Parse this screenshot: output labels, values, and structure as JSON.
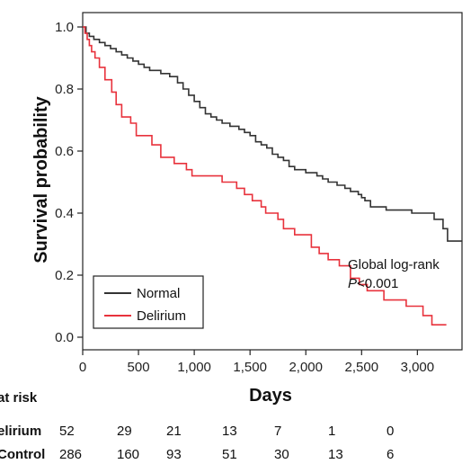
{
  "chart_data": {
    "type": "line",
    "xlabel": "Days",
    "ylabel": "Survival probability",
    "xlim": [
      0,
      3400
    ],
    "ylim": [
      0,
      1.0
    ],
    "x_ticks": [
      0,
      500,
      1000,
      1500,
      2000,
      2500,
      3000
    ],
    "x_tick_labels": [
      "0",
      "500",
      "1,000",
      "1,500",
      "2,000",
      "2,500",
      "3,000"
    ],
    "y_ticks": [
      0.0,
      0.2,
      0.4,
      0.6,
      0.8,
      1.0
    ],
    "y_tick_labels": [
      "0.0",
      "0.2",
      "0.4",
      "0.6",
      "0.8",
      "1.0"
    ],
    "legend_position": "bottom-left",
    "series": [
      {
        "name": "Normal",
        "color": "#333333",
        "step": true,
        "points": [
          [
            0,
            1.0
          ],
          [
            30,
            0.98
          ],
          [
            60,
            0.97
          ],
          [
            100,
            0.96
          ],
          [
            150,
            0.95
          ],
          [
            200,
            0.94
          ],
          [
            250,
            0.93
          ],
          [
            300,
            0.92
          ],
          [
            350,
            0.91
          ],
          [
            400,
            0.9
          ],
          [
            450,
            0.89
          ],
          [
            500,
            0.88
          ],
          [
            550,
            0.87
          ],
          [
            600,
            0.86
          ],
          [
            700,
            0.85
          ],
          [
            780,
            0.84
          ],
          [
            850,
            0.82
          ],
          [
            900,
            0.8
          ],
          [
            950,
            0.78
          ],
          [
            1000,
            0.76
          ],
          [
            1050,
            0.74
          ],
          [
            1100,
            0.72
          ],
          [
            1150,
            0.71
          ],
          [
            1200,
            0.7
          ],
          [
            1250,
            0.69
          ],
          [
            1320,
            0.68
          ],
          [
            1400,
            0.67
          ],
          [
            1450,
            0.66
          ],
          [
            1500,
            0.65
          ],
          [
            1550,
            0.63
          ],
          [
            1600,
            0.62
          ],
          [
            1650,
            0.61
          ],
          [
            1700,
            0.59
          ],
          [
            1750,
            0.58
          ],
          [
            1800,
            0.57
          ],
          [
            1850,
            0.55
          ],
          [
            1900,
            0.54
          ],
          [
            2000,
            0.53
          ],
          [
            2100,
            0.52
          ],
          [
            2150,
            0.51
          ],
          [
            2200,
            0.5
          ],
          [
            2280,
            0.49
          ],
          [
            2350,
            0.48
          ],
          [
            2400,
            0.47
          ],
          [
            2470,
            0.46
          ],
          [
            2500,
            0.45
          ],
          [
            2530,
            0.44
          ],
          [
            2580,
            0.42
          ],
          [
            2720,
            0.41
          ],
          [
            2950,
            0.4
          ],
          [
            3150,
            0.38
          ],
          [
            3230,
            0.35
          ],
          [
            3270,
            0.31
          ],
          [
            3400,
            0.31
          ]
        ]
      },
      {
        "name": "Delirium",
        "color": "#e8323c",
        "step": true,
        "points": [
          [
            0,
            1.0
          ],
          [
            20,
            0.98
          ],
          [
            40,
            0.96
          ],
          [
            60,
            0.94
          ],
          [
            80,
            0.92
          ],
          [
            110,
            0.9
          ],
          [
            150,
            0.87
          ],
          [
            200,
            0.83
          ],
          [
            260,
            0.79
          ],
          [
            300,
            0.75
          ],
          [
            350,
            0.71
          ],
          [
            430,
            0.69
          ],
          [
            480,
            0.65
          ],
          [
            620,
            0.62
          ],
          [
            700,
            0.58
          ],
          [
            820,
            0.56
          ],
          [
            930,
            0.54
          ],
          [
            980,
            0.52
          ],
          [
            1250,
            0.5
          ],
          [
            1380,
            0.48
          ],
          [
            1450,
            0.46
          ],
          [
            1520,
            0.44
          ],
          [
            1600,
            0.42
          ],
          [
            1640,
            0.4
          ],
          [
            1750,
            0.38
          ],
          [
            1800,
            0.35
          ],
          [
            1900,
            0.33
          ],
          [
            2050,
            0.29
          ],
          [
            2120,
            0.27
          ],
          [
            2200,
            0.25
          ],
          [
            2300,
            0.23
          ],
          [
            2400,
            0.19
          ],
          [
            2480,
            0.17
          ],
          [
            2550,
            0.15
          ],
          [
            2700,
            0.12
          ],
          [
            2900,
            0.1
          ],
          [
            3050,
            0.07
          ],
          [
            3130,
            0.04
          ],
          [
            3260,
            0.04
          ]
        ]
      }
    ],
    "annotation": {
      "line1": "Global log-rank",
      "line2_italic": "P",
      "line2_rest": "<0.001"
    },
    "at_risk": {
      "title": "at risk",
      "rows": [
        {
          "label": "elirium",
          "values": [
            "52",
            "29",
            "21",
            "13",
            "7",
            "1",
            "0"
          ]
        },
        {
          "label": "Control",
          "values": [
            "286",
            "160",
            "93",
            "51",
            "30",
            "13",
            "6"
          ]
        }
      ]
    }
  }
}
